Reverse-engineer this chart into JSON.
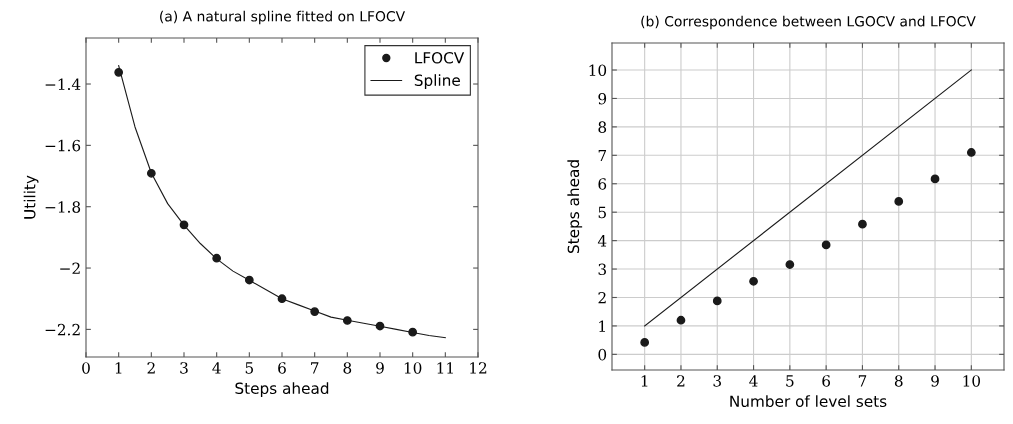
{
  "chart_data": [
    {
      "type": "scatter",
      "title": "(a) A natural spline fitted on LFOCV",
      "xlabel": "Steps ahead",
      "ylabel": "Utility",
      "xlim": [
        0,
        12
      ],
      "xticks": [
        0,
        1,
        2,
        3,
        4,
        5,
        6,
        7,
        8,
        9,
        10,
        11,
        12
      ],
      "ylim": [
        -2.29,
        -1.25
      ],
      "yticks": [
        {
          "value": -2.2,
          "label": "−2.2"
        },
        {
          "value": -2,
          "label": "−2"
        },
        {
          "value": -1.8,
          "label": "−1.8"
        },
        {
          "value": -1.6,
          "label": "−1.6"
        },
        {
          "value": -1.4,
          "label": "−1.4"
        }
      ],
      "grid": false,
      "legend": "top right",
      "series": [
        {
          "name": "LFOCV",
          "marker": "circle",
          "color": "#1a1a1a",
          "x": [
            1,
            2,
            3,
            4,
            5,
            6,
            7,
            8,
            9,
            10
          ],
          "values": [
            -1.362,
            -1.691,
            -1.859,
            -1.968,
            -2.039,
            -2.1,
            -2.142,
            -2.171,
            -2.189,
            -2.209
          ]
        },
        {
          "name": "Spline",
          "type": "line",
          "line_style": "solid",
          "color": "#1a1a1a",
          "x": [
            1,
            1.5,
            2,
            2.5,
            3,
            3.5,
            4,
            4.5,
            5,
            5.5,
            6,
            6.5,
            7,
            7.5,
            8,
            8.5,
            9,
            9.5,
            10,
            10.5,
            11
          ],
          "values": [
            -1.34,
            -1.54,
            -1.69,
            -1.79,
            -1.86,
            -1.92,
            -1.97,
            -2.01,
            -2.04,
            -2.07,
            -2.1,
            -2.12,
            -2.14,
            -2.16,
            -2.17,
            -2.18,
            -2.19,
            -2.2,
            -2.21,
            -2.22,
            -2.227
          ]
        }
      ]
    },
    {
      "type": "scatter",
      "title": "(b) Correspondence between LGOCV and LFOCV",
      "xlabel": "Number of level sets",
      "ylabel": "Steps ahead",
      "xlim": [
        0.1,
        10.9
      ],
      "xticks": [
        1,
        2,
        3,
        4,
        5,
        6,
        7,
        8,
        9,
        10
      ],
      "ylim": [
        -0.55,
        10.95
      ],
      "yticks": [
        0,
        1,
        2,
        3,
        4,
        5,
        6,
        7,
        8,
        9,
        10
      ],
      "grid": true,
      "legend": false,
      "series": [
        {
          "marker": "circle",
          "color": "#1a1a1a",
          "x": [
            1,
            2,
            3,
            4,
            5,
            6,
            7,
            8,
            9,
            10
          ],
          "values": [
            0.42,
            1.2,
            1.88,
            2.57,
            3.16,
            3.85,
            4.58,
            5.38,
            6.17,
            7.1
          ]
        },
        {
          "type": "line",
          "line_style": "solid",
          "color": "#1a1a1a",
          "x": [
            1,
            10
          ],
          "values": [
            1,
            10
          ]
        }
      ]
    }
  ]
}
